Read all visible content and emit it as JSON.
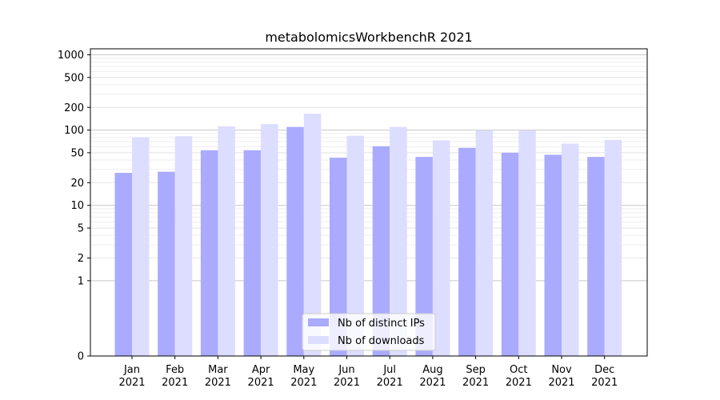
{
  "chart_data": {
    "type": "bar",
    "title": "metabolomicsWorkbenchR 2021",
    "xlabel": "",
    "ylabel": "",
    "yscale": "symlog",
    "ylim": [
      0,
      1200
    ],
    "yticks": [
      0,
      1,
      2,
      5,
      10,
      20,
      50,
      100,
      200,
      500,
      1000
    ],
    "ytick_labels": [
      "0",
      "1",
      "2",
      "5",
      "10",
      "20",
      "50",
      "100",
      "200",
      "500",
      "1000"
    ],
    "categories": [
      "Jan",
      "Feb",
      "Mar",
      "Apr",
      "May",
      "Jun",
      "Jul",
      "Aug",
      "Sep",
      "Oct",
      "Nov",
      "Dec"
    ],
    "category_sublabel": "2021",
    "grid": true,
    "legend_position": "bottom-center",
    "series": [
      {
        "name": "Nb of distinct IPs",
        "color": "#aaaaff",
        "values": [
          27,
          28,
          54,
          54,
          110,
          43,
          61,
          44,
          58,
          50,
          47,
          44
        ]
      },
      {
        "name": "Nb of downloads",
        "color": "#ddddff",
        "values": [
          80,
          83,
          112,
          120,
          165,
          84,
          110,
          73,
          99,
          99,
          66,
          74
        ]
      }
    ]
  }
}
